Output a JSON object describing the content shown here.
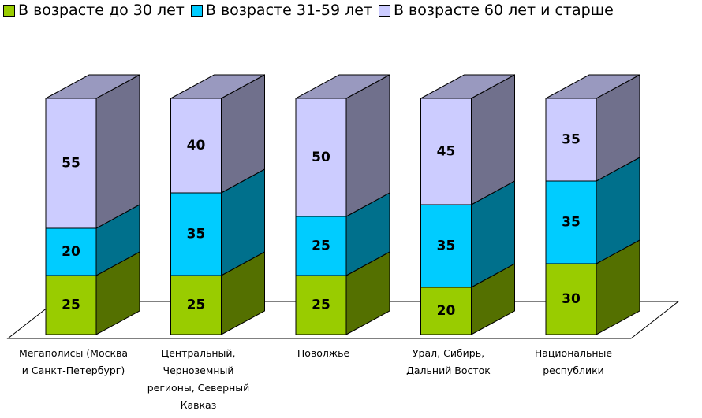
{
  "chart_data": {
    "type": "bar3d_stacked",
    "categories": [
      "Мегаполисы (Москва и Санкт-Петербург)",
      "Центральный, Черноземный регионы, Северный Кавказ",
      "Поволжье",
      "Урал, Сибирь, Дальний Восток",
      "Национальные республики"
    ],
    "series": [
      {
        "name": "В возрасте до 30 лет",
        "color": "#99cc00",
        "values": [
          25,
          25,
          25,
          20,
          30
        ]
      },
      {
        "name": "В возрасте 31-59 лет",
        "color": "#00ccff",
        "values": [
          20,
          35,
          25,
          35,
          35
        ]
      },
      {
        "name": "В возрасте 60 лет и старше",
        "color": "#ccccff",
        "values": [
          55,
          40,
          50,
          45,
          35
        ]
      }
    ],
    "legend": "top"
  }
}
